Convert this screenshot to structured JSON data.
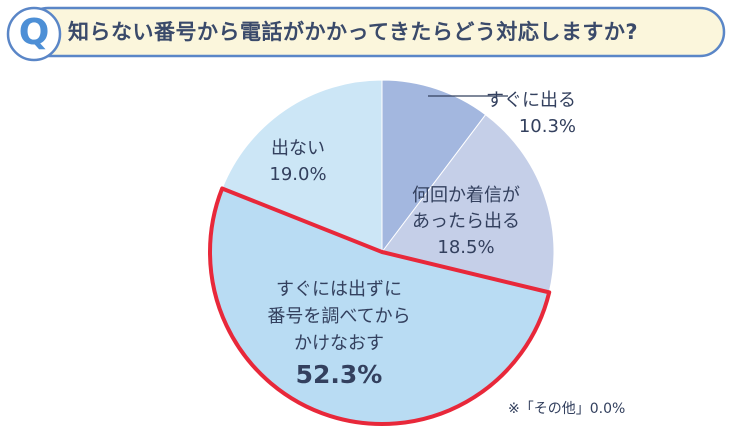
{
  "question": {
    "mark": "Q",
    "text": "知らない番号から電話がかかってきたらどう対応しますか?"
  },
  "chart_data": {
    "type": "pie",
    "start_angle_deg": 0,
    "direction": "clockwise",
    "highlighted_index": 2,
    "slices": [
      {
        "label": "すぐに出る",
        "value": 10.3,
        "value_label": "10.3%",
        "color": "#a3b7df"
      },
      {
        "label": "何回か着信があったら出る",
        "label_lines": [
          "何回か着信が",
          "あったら出る"
        ],
        "value": 18.5,
        "value_label": "18.5%",
        "color": "#c5cfe8"
      },
      {
        "label": "すぐには出ずに番号を調べてからかけなおす",
        "label_lines": [
          "すぐには出ずに",
          "番号を調べてから",
          "かけなおす"
        ],
        "value": 52.3,
        "value_label": "52.3%",
        "color": "#b9dcf3"
      },
      {
        "label": "出ない",
        "value": 19.0,
        "value_label": "19.0%",
        "color": "#cce6f6"
      }
    ],
    "highlight_stroke": "#e8283a",
    "footnote": "※「その他」0.0%"
  }
}
